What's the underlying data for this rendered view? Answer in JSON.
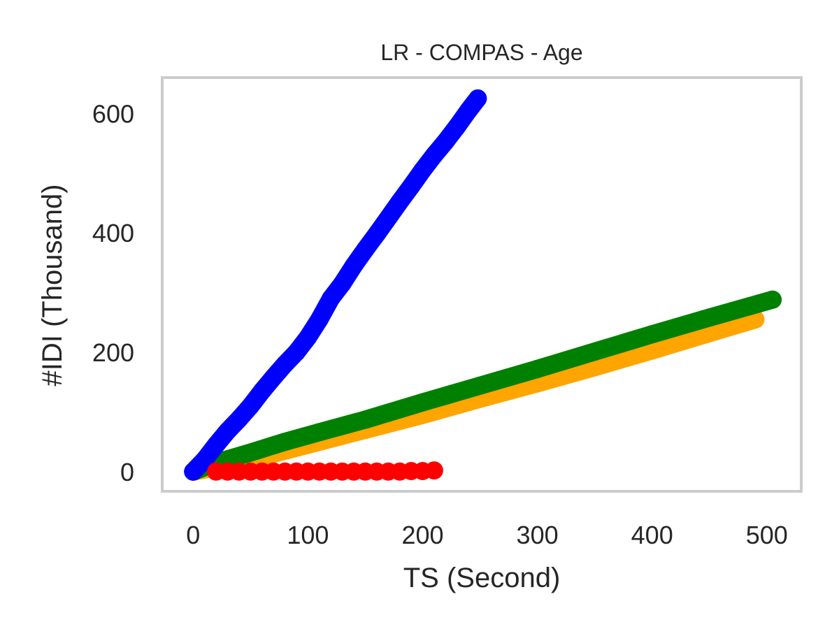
{
  "chart_data": {
    "type": "scatter",
    "title": "LR - COMPAS - Age",
    "xlabel": "TS (Second)",
    "ylabel": "#IDI (Thousand)",
    "xlim": [
      -27,
      530
    ],
    "ylim": [
      -33,
      660
    ],
    "xticks": [
      0,
      100,
      200,
      300,
      400,
      500
    ],
    "yticks": [
      0,
      200,
      400,
      600
    ],
    "grid": false,
    "series": [
      {
        "color": "#ffa500",
        "x": [
          0,
          20,
          50,
          80,
          120,
          150,
          200,
          250,
          300,
          350,
          400,
          450,
          490
        ],
        "y": [
          0,
          7,
          20,
          35,
          55,
          70,
          95,
          122,
          148,
          175,
          203,
          232,
          255
        ]
      },
      {
        "color": "#008000",
        "x": [
          0,
          20,
          50,
          80,
          110,
          150,
          200,
          250,
          300,
          350,
          400,
          450,
          505
        ],
        "y": [
          0,
          15,
          32,
          50,
          66,
          87,
          116,
          144,
          172,
          201,
          230,
          258,
          288
        ]
      },
      {
        "color": "#0000ff",
        "x": [
          0,
          10,
          20,
          30,
          40,
          50,
          60,
          70,
          80,
          90,
          100,
          110,
          120,
          130,
          140,
          150,
          160,
          170,
          180,
          190,
          200,
          210,
          220,
          230,
          240,
          248
        ],
        "y": [
          0,
          20,
          45,
          68,
          88,
          110,
          135,
          158,
          180,
          200,
          225,
          255,
          290,
          315,
          345,
          372,
          398,
          425,
          452,
          478,
          505,
          530,
          553,
          578,
          605,
          625
        ]
      },
      {
        "color": "#ff0000",
        "x": [
          20,
          30,
          40,
          50,
          60,
          70,
          80,
          90,
          100,
          110,
          120,
          130,
          140,
          150,
          160,
          170,
          180,
          190,
          200,
          210
        ],
        "y": [
          0,
          0,
          0,
          0,
          0,
          0,
          0,
          0,
          0,
          0,
          0,
          0,
          0,
          0,
          0,
          0,
          0,
          1,
          1,
          2
        ]
      }
    ]
  }
}
